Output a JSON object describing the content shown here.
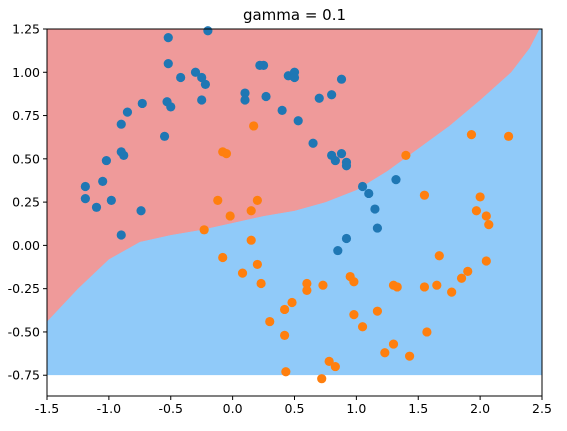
{
  "chart_data": {
    "type": "scatter",
    "title": "gamma = 0.1",
    "xlabel": "",
    "ylabel": "",
    "xlim": [
      -1.5,
      2.5
    ],
    "ylim": [
      -0.87,
      1.25
    ],
    "xticks": [
      "-1.5",
      "-1.0",
      "-0.5",
      "0.0",
      "0.5",
      "1.0",
      "1.5",
      "2.0",
      "2.5"
    ],
    "yticks": [
      "-0.75",
      "-0.50",
      "-0.25",
      "0.00",
      "0.25",
      "0.50",
      "0.75",
      "1.00",
      "1.25"
    ],
    "grid": false,
    "decision_regions": {
      "fill_ylim": [
        -0.75,
        1.25
      ],
      "upper_color": "#ef9a9a",
      "lower_color": "#90caf9",
      "boundary": [
        [
          -1.5,
          -0.44
        ],
        [
          -1.25,
          -0.25
        ],
        [
          -1.0,
          -0.08
        ],
        [
          -0.75,
          0.02
        ],
        [
          -0.5,
          0.06
        ],
        [
          -0.25,
          0.09
        ],
        [
          0.0,
          0.13
        ],
        [
          0.25,
          0.17
        ],
        [
          0.5,
          0.2
        ],
        [
          0.75,
          0.25
        ],
        [
          1.0,
          0.32
        ],
        [
          1.25,
          0.43
        ],
        [
          1.5,
          0.56
        ],
        [
          1.75,
          0.69
        ],
        [
          2.0,
          0.84
        ],
        [
          2.25,
          1.0
        ],
        [
          2.4,
          1.14
        ],
        [
          2.5,
          1.28
        ]
      ]
    },
    "series": [
      {
        "color": "#1f77b4",
        "points": [
          [
            -0.2,
            1.24
          ],
          [
            -0.52,
            1.2
          ],
          [
            -0.52,
            1.05
          ],
          [
            -0.42,
            0.97
          ],
          [
            -0.3,
            1.0
          ],
          [
            -0.25,
            0.97
          ],
          [
            -0.22,
            0.93
          ],
          [
            -0.25,
            0.84
          ],
          [
            -0.53,
            0.83
          ],
          [
            -0.5,
            0.8
          ],
          [
            -0.73,
            0.82
          ],
          [
            -0.85,
            0.77
          ],
          [
            -0.9,
            0.7
          ],
          [
            -0.55,
            0.63
          ],
          [
            -0.9,
            0.54
          ],
          [
            -0.88,
            0.52
          ],
          [
            -1.02,
            0.49
          ],
          [
            -1.05,
            0.37
          ],
          [
            -1.19,
            0.34
          ],
          [
            -1.19,
            0.27
          ],
          [
            -1.1,
            0.22
          ],
          [
            -0.98,
            0.26
          ],
          [
            -0.74,
            0.2
          ],
          [
            -0.9,
            0.06
          ],
          [
            0.1,
            0.88
          ],
          [
            0.1,
            0.84
          ],
          [
            0.22,
            1.04
          ],
          [
            0.25,
            1.04
          ],
          [
            0.27,
            0.86
          ],
          [
            0.4,
            0.78
          ],
          [
            0.45,
            0.98
          ],
          [
            0.5,
            1.0
          ],
          [
            0.5,
            0.97
          ],
          [
            0.53,
            0.72
          ],
          [
            0.65,
            0.59
          ],
          [
            0.7,
            0.85
          ],
          [
            0.8,
            0.87
          ],
          [
            0.88,
            0.96
          ],
          [
            0.8,
            0.52
          ],
          [
            0.83,
            0.49
          ],
          [
            0.88,
            0.53
          ],
          [
            0.92,
            0.48
          ],
          [
            0.92,
            0.46
          ],
          [
            1.05,
            0.34
          ],
          [
            1.1,
            0.3
          ],
          [
            1.15,
            0.21
          ],
          [
            1.17,
            0.1
          ],
          [
            1.32,
            0.38
          ],
          [
            0.85,
            -0.03
          ],
          [
            0.92,
            0.04
          ]
        ]
      },
      {
        "color": "#ff7f0e",
        "points": [
          [
            0.17,
            0.69
          ],
          [
            -0.08,
            0.54
          ],
          [
            -0.05,
            0.53
          ],
          [
            -0.12,
            0.26
          ],
          [
            -0.02,
            0.17
          ],
          [
            0.15,
            0.2
          ],
          [
            0.2,
            0.26
          ],
          [
            -0.23,
            0.09
          ],
          [
            0.15,
            0.03
          ],
          [
            -0.08,
            -0.07
          ],
          [
            0.08,
            -0.16
          ],
          [
            0.2,
            -0.11
          ],
          [
            0.23,
            -0.22
          ],
          [
            0.3,
            -0.44
          ],
          [
            0.42,
            -0.37
          ],
          [
            0.48,
            -0.33
          ],
          [
            0.42,
            -0.52
          ],
          [
            0.43,
            -0.73
          ],
          [
            0.6,
            -0.26
          ],
          [
            0.6,
            -0.22
          ],
          [
            0.73,
            -0.23
          ],
          [
            0.72,
            -0.77
          ],
          [
            0.78,
            -0.67
          ],
          [
            0.83,
            -0.7
          ],
          [
            0.95,
            -0.18
          ],
          [
            0.98,
            -0.21
          ],
          [
            0.98,
            -0.4
          ],
          [
            1.05,
            -0.47
          ],
          [
            1.17,
            -0.38
          ],
          [
            1.23,
            -0.62
          ],
          [
            1.3,
            -0.23
          ],
          [
            1.33,
            -0.24
          ],
          [
            1.3,
            -0.57
          ],
          [
            1.43,
            -0.64
          ],
          [
            1.4,
            0.52
          ],
          [
            1.55,
            0.29
          ],
          [
            1.55,
            -0.24
          ],
          [
            1.57,
            -0.5
          ],
          [
            1.65,
            -0.23
          ],
          [
            1.67,
            -0.06
          ],
          [
            1.77,
            -0.27
          ],
          [
            1.85,
            -0.19
          ],
          [
            1.9,
            -0.15
          ],
          [
            1.93,
            0.64
          ],
          [
            1.97,
            0.2
          ],
          [
            2.0,
            0.28
          ],
          [
            2.05,
            0.17
          ],
          [
            2.07,
            0.12
          ],
          [
            2.05,
            -0.09
          ],
          [
            2.23,
            0.63
          ]
        ]
      }
    ]
  }
}
